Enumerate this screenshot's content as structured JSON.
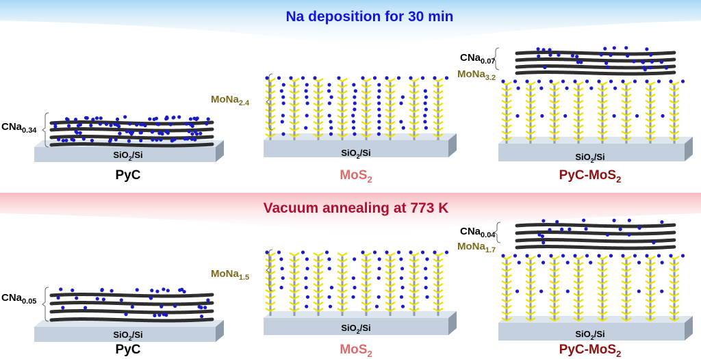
{
  "colors": {
    "title1": "#1414d8",
    "title2": "#b01030",
    "mos2": "#e06a6a",
    "pyc_mos2": "#8c1010",
    "mona": "#7a6a1c",
    "na": "#1a1ac8",
    "carbon": "#2e2e2e",
    "sulfur": "#f0e000",
    "mo": "#8a9ab8",
    "substrate": "#c4d0de"
  },
  "banners": {
    "top": {
      "title": "Na deposition for 30 min"
    },
    "bottom": {
      "title": "Vacuum annealing at 773 K"
    }
  },
  "substrate_label": {
    "base": "SiO",
    "sub": "2",
    "tail": "/Si"
  },
  "row1": {
    "pyc": {
      "name": "PyC",
      "comp_base": "CNa",
      "comp_sub": "0.34"
    },
    "mos2": {
      "name_base": "MoS",
      "name_sub": "2",
      "comp_base": "MoNa",
      "comp_sub": "2.4"
    },
    "pyc_mos2": {
      "name_base": "PyC-MoS",
      "name_sub": "2",
      "c_base": "CNa",
      "c_sub": "0.07",
      "m_base": "MoNa",
      "m_sub": "3.2"
    }
  },
  "row2": {
    "pyc": {
      "name": "PyC",
      "comp_base": "CNa",
      "comp_sub": "0.05"
    },
    "mos2": {
      "name_base": "MoS",
      "name_sub": "2",
      "comp_base": "MoNa",
      "comp_sub": "1.5"
    },
    "pyc_mos2": {
      "name_base": "PyC-MoS",
      "name_sub": "2",
      "c_base": "CNa",
      "c_sub": "0.04",
      "m_base": "MoNa",
      "m_sub": "1.7"
    }
  }
}
